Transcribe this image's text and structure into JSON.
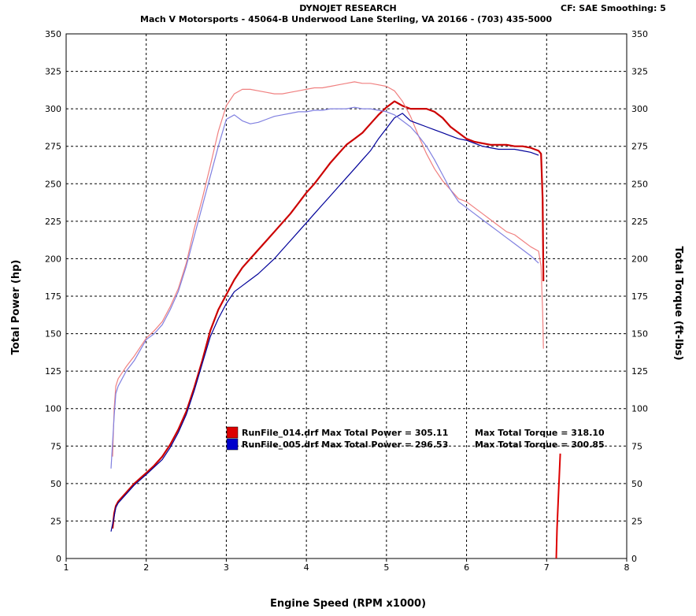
{
  "header": {
    "title": "DYNOJET RESEARCH",
    "address": "Mach V Motorsports - 45064-B Underwood Lane    Sterling, VA  20166 - (703) 435-5000",
    "correction": "CF: SAE  Smoothing: 5"
  },
  "chart_data": {
    "type": "line",
    "xlabel": "Engine Speed (RPM x1000)",
    "ylabel_left": "Total Power (hp)",
    "ylabel_right": "Total Torque (ft-lbs)",
    "xlim": [
      1,
      8
    ],
    "ylim": [
      0,
      350
    ],
    "xticks": [
      1,
      2,
      3,
      4,
      5,
      6,
      7,
      8
    ],
    "yticks": [
      0,
      25,
      50,
      75,
      100,
      125,
      150,
      175,
      200,
      225,
      250,
      275,
      300,
      325,
      350
    ],
    "grid": true,
    "legend_position": "center-bottom",
    "legend": [
      {
        "label": "RunFile_014.drf Max Total Power = 305.11",
        "torque_label": "Max Total Torque = 318.10",
        "color": "#dd0000"
      },
      {
        "label": "RunFile_005.drf Max Total Power = 296.53",
        "torque_label": "Max Total Torque = 300.85",
        "color": "#0000cc"
      }
    ],
    "series": [
      {
        "name": "RunFile_014.drf",
        "kind": "power",
        "color": "#cc0000",
        "x": [
          1.58,
          1.6,
          1.62,
          1.65,
          1.75,
          1.85,
          2.0,
          2.1,
          2.2,
          2.3,
          2.4,
          2.5,
          2.6,
          2.7,
          2.8,
          2.9,
          3.0,
          3.1,
          3.2,
          3.3,
          3.4,
          3.5,
          3.6,
          3.7,
          3.8,
          3.9,
          4.0,
          4.1,
          4.2,
          4.3,
          4.4,
          4.5,
          4.6,
          4.7,
          4.8,
          4.9,
          5.0,
          5.1,
          5.2,
          5.3,
          5.4,
          5.5,
          5.6,
          5.7,
          5.8,
          5.9,
          6.0,
          6.1,
          6.2,
          6.3,
          6.4,
          6.5,
          6.6,
          6.7,
          6.8,
          6.9,
          6.93,
          6.95,
          6.96
        ],
        "y": [
          20,
          30,
          35,
          38,
          44,
          50,
          57,
          62,
          68,
          76,
          86,
          98,
          114,
          132,
          152,
          166,
          176,
          186,
          194,
          200,
          206,
          212,
          218,
          224,
          230,
          237,
          244,
          250,
          257,
          264,
          270,
          276,
          280,
          284,
          290,
          296,
          301,
          305,
          302,
          300,
          300,
          300,
          298,
          294,
          288,
          284,
          280,
          278,
          277,
          276,
          276,
          276,
          275,
          275,
          274,
          272,
          270,
          240,
          185
        ]
      },
      {
        "name": "RunFile_014.drf",
        "kind": "torque",
        "color": "#f08080",
        "x": [
          1.58,
          1.6,
          1.62,
          1.65,
          1.75,
          1.85,
          2.0,
          2.1,
          2.2,
          2.3,
          2.4,
          2.5,
          2.6,
          2.7,
          2.8,
          2.9,
          3.0,
          3.1,
          3.2,
          3.3,
          3.4,
          3.5,
          3.6,
          3.7,
          3.8,
          3.9,
          4.0,
          4.1,
          4.2,
          4.3,
          4.4,
          4.5,
          4.6,
          4.7,
          4.8,
          4.9,
          5.0,
          5.1,
          5.2,
          5.3,
          5.4,
          5.5,
          5.6,
          5.7,
          5.8,
          5.9,
          6.0,
          6.1,
          6.2,
          6.3,
          6.4,
          6.5,
          6.6,
          6.7,
          6.8,
          6.9,
          6.93,
          6.95,
          6.96
        ],
        "y": [
          68,
          100,
          115,
          120,
          128,
          135,
          147,
          152,
          158,
          168,
          180,
          197,
          220,
          240,
          262,
          285,
          302,
          310,
          313,
          313,
          312,
          311,
          310,
          310,
          311,
          312,
          313,
          314,
          314,
          315,
          316,
          317,
          318,
          317,
          317,
          316,
          315,
          312,
          305,
          295,
          282,
          270,
          260,
          252,
          246,
          240,
          238,
          234,
          230,
          226,
          222,
          218,
          216,
          212,
          208,
          205,
          195,
          165,
          140
        ]
      },
      {
        "name": "RunFile_005.drf",
        "kind": "power",
        "color": "#000099",
        "x": [
          1.56,
          1.6,
          1.62,
          1.65,
          1.75,
          1.85,
          2.0,
          2.1,
          2.2,
          2.3,
          2.4,
          2.5,
          2.6,
          2.7,
          2.8,
          2.9,
          3.0,
          3.1,
          3.2,
          3.3,
          3.4,
          3.5,
          3.6,
          3.7,
          3.8,
          3.9,
          4.0,
          4.1,
          4.2,
          4.3,
          4.4,
          4.5,
          4.6,
          4.7,
          4.8,
          4.9,
          5.0,
          5.1,
          5.2,
          5.3,
          5.4,
          5.5,
          5.6,
          5.7,
          5.8,
          5.9,
          6.0,
          6.1,
          6.2,
          6.3,
          6.4,
          6.5,
          6.6,
          6.7,
          6.8,
          6.9
        ],
        "y": [
          18,
          28,
          34,
          37,
          43,
          49,
          56,
          61,
          66,
          74,
          84,
          96,
          112,
          130,
          148,
          160,
          170,
          178,
          182,
          186,
          190,
          195,
          200,
          206,
          212,
          218,
          224,
          230,
          236,
          242,
          248,
          254,
          260,
          266,
          272,
          280,
          287,
          294,
          297,
          292,
          290,
          288,
          286,
          284,
          282,
          280,
          279,
          277,
          275,
          274,
          273,
          273,
          273,
          272,
          271,
          269
        ]
      },
      {
        "name": "RunFile_005.drf",
        "kind": "torque",
        "color": "#8080e0",
        "x": [
          1.56,
          1.6,
          1.62,
          1.65,
          1.75,
          1.85,
          2.0,
          2.1,
          2.2,
          2.3,
          2.4,
          2.5,
          2.6,
          2.7,
          2.8,
          2.9,
          3.0,
          3.1,
          3.2,
          3.3,
          3.4,
          3.5,
          3.6,
          3.7,
          3.8,
          3.9,
          4.0,
          4.1,
          4.2,
          4.3,
          4.4,
          4.5,
          4.6,
          4.7,
          4.8,
          4.9,
          5.0,
          5.1,
          5.2,
          5.3,
          5.4,
          5.5,
          5.6,
          5.7,
          5.8,
          5.9,
          6.0,
          6.1,
          6.2,
          6.3,
          6.4,
          6.5,
          6.6,
          6.7,
          6.8,
          6.9
        ],
        "y": [
          60,
          95,
          110,
          115,
          125,
          132,
          146,
          150,
          156,
          166,
          178,
          195,
          215,
          235,
          255,
          275,
          293,
          296,
          292,
          290,
          291,
          293,
          295,
          296,
          297,
          298,
          298,
          299,
          299,
          300,
          300,
          300,
          301,
          300,
          300,
          299,
          298,
          296,
          292,
          288,
          282,
          275,
          266,
          256,
          246,
          238,
          234,
          230,
          226,
          222,
          218,
          214,
          210,
          206,
          202,
          197
        ]
      },
      {
        "name": "RunFile_014.drf",
        "kind": "artifact",
        "color": "#dd0000",
        "x": [
          7.12,
          7.13,
          7.15,
          7.17
        ],
        "y": [
          0,
          20,
          45,
          70
        ]
      }
    ]
  }
}
